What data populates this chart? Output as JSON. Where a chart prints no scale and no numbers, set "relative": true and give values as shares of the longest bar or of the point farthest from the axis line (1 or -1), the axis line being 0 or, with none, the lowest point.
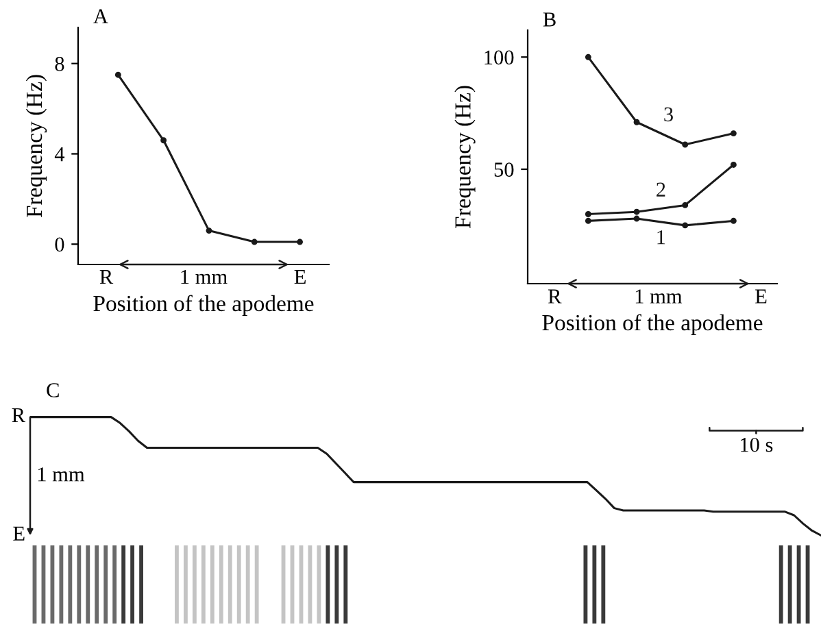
{
  "chart_data": [
    {
      "type": "line",
      "title": "A",
      "xlabel": "Position of the apodeme",
      "ylabel": "Frequency (Hz)",
      "categories": [
        null,
        null,
        null,
        null,
        null
      ],
      "series": [
        {
          "color": "#1a1a1a",
          "values": [
            7.5,
            4.6,
            0.6,
            0.1,
            0.1
          ]
        }
      ],
      "ylim": [
        -0.9,
        9.6
      ],
      "yticks": [
        0,
        4,
        8
      ],
      "annotations": [
        "R",
        "1 mm",
        "E"
      ],
      "grid": false,
      "legend": false,
      "marker": "circle"
    },
    {
      "type": "line",
      "title": "B",
      "xlabel": "Position of the apodeme",
      "ylabel": "Frequency (Hz)",
      "categories": [
        null,
        null,
        null,
        null
      ],
      "series": [
        {
          "name": "1",
          "color": "#1a1a1a",
          "values": [
            27,
            28,
            25,
            27
          ]
        },
        {
          "name": "2",
          "color": "#1a1a1a",
          "values": [
            30,
            31,
            34,
            52
          ]
        },
        {
          "name": "3",
          "color": "#1a1a1a",
          "values": [
            100,
            71,
            61,
            66
          ]
        }
      ],
      "ylim": [
        -1,
        112
      ],
      "yticks": [
        50,
        100
      ],
      "annotations": [
        "R",
        "1 mm",
        "E"
      ],
      "grid": false,
      "legend": false,
      "marker": "circle"
    },
    {
      "type": "line",
      "title": "C",
      "relative": true,
      "categories": [
        null,
        null,
        null,
        null,
        null,
        null,
        null,
        null,
        null,
        null,
        null,
        null,
        null,
        null,
        null,
        null,
        null,
        null,
        null,
        null,
        null,
        null,
        null,
        null,
        null,
        null,
        null,
        null,
        null,
        null,
        null,
        null,
        null,
        null,
        null,
        null,
        null,
        null,
        null,
        null,
        null,
        null,
        null,
        null,
        null,
        null,
        null,
        null,
        null,
        null,
        null,
        null,
        null,
        null,
        null,
        null,
        null,
        null,
        null,
        null,
        null,
        null,
        null,
        null,
        null,
        null,
        null,
        null,
        null,
        null,
        null,
        null,
        null,
        null,
        null,
        null,
        null,
        null,
        null,
        null,
        null,
        null,
        null,
        null,
        null,
        null,
        null,
        null,
        null
      ],
      "series": [
        {
          "color": "#1a1a1a",
          "values": [
            1,
            1,
            1,
            1,
            1,
            1,
            1,
            1,
            1,
            1,
            0.95,
            0.88,
            0.8,
            0.74,
            0.74,
            0.74,
            0.74,
            0.74,
            0.74,
            0.74,
            0.74,
            0.74,
            0.74,
            0.74,
            0.74,
            0.74,
            0.74,
            0.74,
            0.74,
            0.74,
            0.74,
            0.74,
            0.74,
            0.69,
            0.61,
            0.53,
            0.45,
            0.45,
            0.45,
            0.45,
            0.45,
            0.45,
            0.45,
            0.45,
            0.45,
            0.45,
            0.45,
            0.45,
            0.45,
            0.45,
            0.45,
            0.45,
            0.45,
            0.45,
            0.45,
            0.45,
            0.45,
            0.45,
            0.45,
            0.45,
            0.45,
            0.45,
            0.45,
            0.38,
            0.31,
            0.23,
            0.21,
            0.21,
            0.21,
            0.21,
            0.21,
            0.21,
            0.21,
            0.21,
            0.21,
            0.21,
            0.2,
            0.2,
            0.2,
            0.2,
            0.2,
            0.2,
            0.2,
            0.2,
            0.2,
            0.17,
            0.1,
            0.04,
            0
          ]
        }
      ],
      "annotations": [
        "R",
        "1 mm",
        "E",
        "10 s"
      ],
      "grid": false,
      "legend": false,
      "marker": "none"
    },
    {
      "type": "bar",
      "relative": true,
      "categories": [
        null,
        null,
        null,
        null,
        null,
        null,
        null,
        null,
        null,
        null,
        null,
        null,
        null,
        null,
        null,
        null,
        null,
        null,
        null,
        null,
        null,
        null,
        null,
        null,
        null,
        null,
        null,
        null,
        null,
        null,
        null,
        null,
        null,
        null,
        null,
        null,
        null,
        null,
        null,
        null,
        null,
        null,
        null,
        null,
        null,
        null,
        null,
        null,
        null,
        null,
        null,
        null,
        null,
        null,
        null,
        null,
        null,
        null,
        null,
        null,
        null,
        null,
        null,
        null,
        null,
        null,
        null,
        null,
        null,
        null,
        null,
        null,
        null,
        null,
        null,
        null,
        null,
        null,
        null,
        null,
        null,
        null,
        null,
        null,
        null,
        null,
        null,
        null,
        null
      ],
      "values": [
        1,
        1,
        1,
        1,
        1,
        1,
        1,
        1,
        1,
        1,
        1,
        1,
        1,
        0,
        0,
        0,
        1,
        1,
        1,
        1,
        1,
        1,
        1,
        1,
        1,
        1,
        0,
        0,
        1,
        1,
        1,
        1,
        1,
        1,
        1,
        1,
        0,
        0,
        0,
        0,
        0,
        0,
        0,
        0,
        0,
        0,
        0,
        0,
        0,
        0,
        0,
        0,
        0,
        0,
        0,
        0,
        0,
        0,
        0,
        0,
        0,
        0,
        1,
        1,
        1,
        0,
        0,
        0,
        0,
        0,
        0,
        0,
        0,
        0,
        0,
        0,
        0,
        0,
        0,
        0,
        0,
        0,
        0,
        0,
        1,
        1,
        1,
        1,
        0
      ],
      "colors": [
        "#6a6a6a",
        "#6a6a6a",
        "#6a6a6a",
        "#6a6a6a",
        "#6a6a6a",
        "#6a6a6a",
        "#6a6a6a",
        "#6a6a6a",
        "#6a6a6a",
        "#6a6a6a",
        "#3a3a3a",
        "#3a3a3a",
        "#3a3a3a",
        "#ffffff",
        "#ffffff",
        "#ffffff",
        "#c4c4c4",
        "#c4c4c4",
        "#c4c4c4",
        "#c4c4c4",
        "#c4c4c4",
        "#c4c4c4",
        "#c4c4c4",
        "#c4c4c4",
        "#c4c4c4",
        "#c4c4c4",
        "#ffffff",
        "#ffffff",
        "#c4c4c4",
        "#c4c4c4",
        "#c4c4c4",
        "#c4c4c4",
        "#c4c4c4",
        "#3a3a3a",
        "#3a3a3a",
        "#3a3a3a",
        "#ffffff",
        "#ffffff",
        "#ffffff",
        "#ffffff",
        "#ffffff",
        "#ffffff",
        "#ffffff",
        "#ffffff",
        "#ffffff",
        "#ffffff",
        "#ffffff",
        "#ffffff",
        "#ffffff",
        "#ffffff",
        "#ffffff",
        "#ffffff",
        "#ffffff",
        "#ffffff",
        "#ffffff",
        "#ffffff",
        "#ffffff",
        "#ffffff",
        "#ffffff",
        "#ffffff",
        "#ffffff",
        "#ffffff",
        "#3a3a3a",
        "#3a3a3a",
        "#3a3a3a",
        "#ffffff",
        "#ffffff",
        "#ffffff",
        "#ffffff",
        "#ffffff",
        "#ffffff",
        "#ffffff",
        "#ffffff",
        "#ffffff",
        "#ffffff",
        "#ffffff",
        "#ffffff",
        "#ffffff",
        "#ffffff",
        "#ffffff",
        "#ffffff",
        "#ffffff",
        "#ffffff",
        "#ffffff",
        "#3a3a3a",
        "#3a3a3a",
        "#3a3a3a",
        "#3a3a3a",
        "#ffffff"
      ],
      "grid": false,
      "legend": false
    }
  ]
}
